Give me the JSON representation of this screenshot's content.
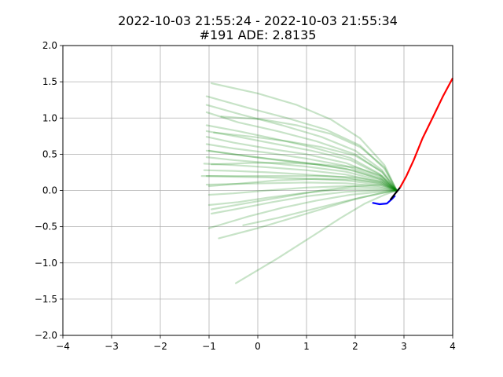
{
  "chart_data": {
    "type": "line",
    "title": "2022-10-03 21:55:24 - 2022-10-03 21:55:34",
    "subtitle": "#191 ADE: 2.8135",
    "xlim": [
      -4,
      4
    ],
    "ylim": [
      -2.0,
      2.0
    ],
    "xticks": [
      "−4",
      "−3",
      "−2",
      "−1",
      "0",
      "1",
      "2",
      "3",
      "4"
    ],
    "yticks": [
      "−2.0",
      "−1.5",
      "−1.0",
      "−0.5",
      "0.0",
      "0.5",
      "1.0",
      "1.5",
      "2.0"
    ],
    "grid": true,
    "colors": {
      "history": "#0000ff",
      "ground_truth": "#ff0000",
      "prediction": "#008000",
      "connector": "#000000"
    },
    "history": {
      "x": [
        2.35,
        2.5,
        2.65,
        2.75,
        2.82
      ],
      "y": [
        -0.17,
        -0.19,
        -0.18,
        -0.12,
        -0.07
      ]
    },
    "connector": {
      "x": [
        2.72,
        2.8,
        2.86,
        2.92
      ],
      "y": [
        -0.13,
        -0.06,
        -0.01,
        0.04
      ]
    },
    "ground_truth": {
      "x": [
        2.92,
        3.05,
        3.2,
        3.38,
        3.6,
        3.8,
        4.0
      ],
      "y": [
        0.04,
        0.2,
        0.42,
        0.72,
        1.02,
        1.3,
        1.55
      ]
    },
    "predictions": [
      {
        "x": [
          2.85,
          2.6,
          2.1,
          1.5,
          0.8,
          0.0,
          -0.95
        ],
        "y": [
          0.0,
          0.35,
          0.72,
          0.98,
          1.18,
          1.34,
          1.48
        ]
      },
      {
        "x": [
          2.85,
          2.6,
          2.1,
          1.4,
          0.6,
          -0.2,
          -1.05
        ],
        "y": [
          0.0,
          0.3,
          0.62,
          0.84,
          1.0,
          1.14,
          1.3
        ]
      },
      {
        "x": [
          2.85,
          2.55,
          2.0,
          1.3,
          0.5,
          -0.3,
          -1.05
        ],
        "y": [
          0.0,
          0.28,
          0.55,
          0.74,
          0.9,
          1.04,
          1.18
        ]
      },
      {
        "x": [
          2.85,
          2.55,
          2.0,
          1.2,
          0.4,
          -0.4,
          -1.05
        ],
        "y": [
          0.0,
          0.25,
          0.5,
          0.68,
          0.82,
          0.94,
          1.08
        ]
      },
      {
        "x": [
          2.85,
          2.5,
          1.9,
          1.1,
          0.3,
          -0.4,
          -1.05
        ],
        "y": [
          0.0,
          0.23,
          0.45,
          0.6,
          0.72,
          0.82,
          0.9
        ]
      },
      {
        "x": [
          2.85,
          2.5,
          1.9,
          1.1,
          0.3,
          -0.4,
          -1.05
        ],
        "y": [
          0.0,
          0.22,
          0.42,
          0.55,
          0.65,
          0.74,
          0.82
        ]
      },
      {
        "x": [
          2.85,
          2.5,
          1.8,
          1.0,
          0.2,
          -0.5,
          -1.05
        ],
        "y": [
          0.0,
          0.2,
          0.38,
          0.5,
          0.58,
          0.66,
          0.74
        ]
      },
      {
        "x": [
          2.85,
          2.5,
          1.8,
          1.0,
          0.2,
          -0.5,
          -1.05
        ],
        "y": [
          0.0,
          0.18,
          0.34,
          0.44,
          0.52,
          0.58,
          0.64
        ]
      },
      {
        "x": [
          2.85,
          2.5,
          1.8,
          1.0,
          0.2,
          -0.5,
          -1.05
        ],
        "y": [
          0.0,
          0.16,
          0.3,
          0.38,
          0.44,
          0.5,
          0.55
        ]
      },
      {
        "x": [
          2.85,
          2.5,
          1.8,
          1.0,
          0.2,
          -0.5,
          -1.05
        ],
        "y": [
          0.0,
          0.14,
          0.26,
          0.33,
          0.38,
          0.42,
          0.46
        ]
      },
      {
        "x": [
          2.85,
          2.5,
          1.8,
          1.0,
          0.2,
          -0.5,
          -1.1
        ],
        "y": [
          0.0,
          0.12,
          0.22,
          0.28,
          0.32,
          0.35,
          0.37
        ]
      },
      {
        "x": [
          2.85,
          2.5,
          1.8,
          1.0,
          0.2,
          -0.5,
          -1.1
        ],
        "y": [
          0.0,
          0.1,
          0.18,
          0.22,
          0.25,
          0.27,
          0.28
        ]
      },
      {
        "x": [
          2.85,
          2.5,
          1.8,
          1.0,
          0.2,
          -0.5,
          -1.05
        ],
        "y": [
          0.0,
          0.08,
          0.14,
          0.16,
          0.18,
          0.19,
          0.2
        ]
      },
      {
        "x": [
          2.85,
          2.5,
          1.8,
          1.0,
          0.2,
          -0.5,
          -1.05
        ],
        "y": [
          0.0,
          0.06,
          0.1,
          0.11,
          0.1,
          0.09,
          0.08
        ]
      },
      {
        "x": [
          2.85,
          2.5,
          1.8,
          1.0,
          0.2,
          -0.5,
          -1.0
        ],
        "y": [
          0.0,
          0.04,
          0.06,
          0.04,
          0.0,
          -0.04,
          -0.06
        ]
      },
      {
        "x": [
          2.85,
          2.5,
          1.8,
          1.0,
          0.2,
          -0.4,
          -1.0
        ],
        "y": [
          0.0,
          0.02,
          0.02,
          -0.03,
          -0.1,
          -0.16,
          -0.2
        ]
      },
      {
        "x": [
          2.85,
          2.5,
          1.8,
          1.0,
          0.3,
          -0.3,
          -0.95
        ],
        "y": [
          0.0,
          0.0,
          -0.02,
          -0.08,
          -0.16,
          -0.24,
          -0.32
        ]
      },
      {
        "x": [
          2.85,
          2.5,
          1.9,
          1.2,
          0.5,
          -0.2,
          -1.0
        ],
        "y": [
          0.0,
          -0.02,
          -0.06,
          -0.14,
          -0.24,
          -0.36,
          -0.52
        ]
      },
      {
        "x": [
          2.85,
          2.5,
          2.0,
          1.4,
          0.7,
          0.0,
          -0.8
        ],
        "y": [
          0.0,
          -0.04,
          -0.12,
          -0.24,
          -0.38,
          -0.52,
          -0.66
        ]
      },
      {
        "x": [
          2.85,
          2.6,
          2.2,
          1.7,
          1.1,
          0.4,
          -0.45
        ],
        "y": [
          0.0,
          -0.06,
          -0.18,
          -0.38,
          -0.64,
          -0.94,
          -1.28
        ]
      },
      {
        "x": [
          2.85,
          2.55,
          2.0,
          1.3,
          0.6,
          -0.1,
          -0.9
        ],
        "y": [
          0.0,
          0.26,
          0.48,
          0.6,
          0.68,
          0.74,
          0.8
        ]
      },
      {
        "x": [
          2.85,
          2.55,
          2.0,
          1.3,
          0.6,
          -0.1,
          -0.95
        ],
        "y": [
          0.0,
          0.2,
          0.32,
          0.36,
          0.38,
          0.38,
          0.36
        ]
      },
      {
        "x": [
          2.85,
          2.55,
          2.0,
          1.3,
          0.6,
          -0.1,
          -1.15
        ],
        "y": [
          0.0,
          0.12,
          0.18,
          0.2,
          0.2,
          0.2,
          0.2
        ]
      },
      {
        "x": [
          2.85,
          2.55,
          2.0,
          1.3,
          0.6,
          -0.1,
          -0.95
        ],
        "y": [
          0.0,
          0.08,
          0.06,
          0.0,
          -0.08,
          -0.16,
          -0.26
        ]
      },
      {
        "x": [
          2.85,
          2.6,
          2.1,
          1.5,
          0.8,
          0.1,
          -0.75
        ],
        "y": [
          0.0,
          0.32,
          0.6,
          0.78,
          0.9,
          0.98,
          1.02
        ]
      },
      {
        "x": [
          2.85,
          2.55,
          1.95,
          1.2,
          0.4,
          -0.3,
          -1.0
        ],
        "y": [
          0.0,
          0.15,
          0.28,
          0.36,
          0.42,
          0.48,
          0.55
        ]
      },
      {
        "x": [
          2.85,
          2.55,
          1.95,
          1.2,
          0.4,
          -0.3,
          -1.0
        ],
        "y": [
          0.0,
          0.1,
          0.15,
          0.16,
          0.14,
          0.1,
          0.06
        ]
      },
      {
        "x": [
          2.85,
          2.6,
          2.1,
          1.6,
          1.0,
          0.4,
          -0.3
        ],
        "y": [
          0.0,
          -0.03,
          -0.1,
          -0.18,
          -0.28,
          -0.38,
          -0.48
        ]
      }
    ]
  }
}
